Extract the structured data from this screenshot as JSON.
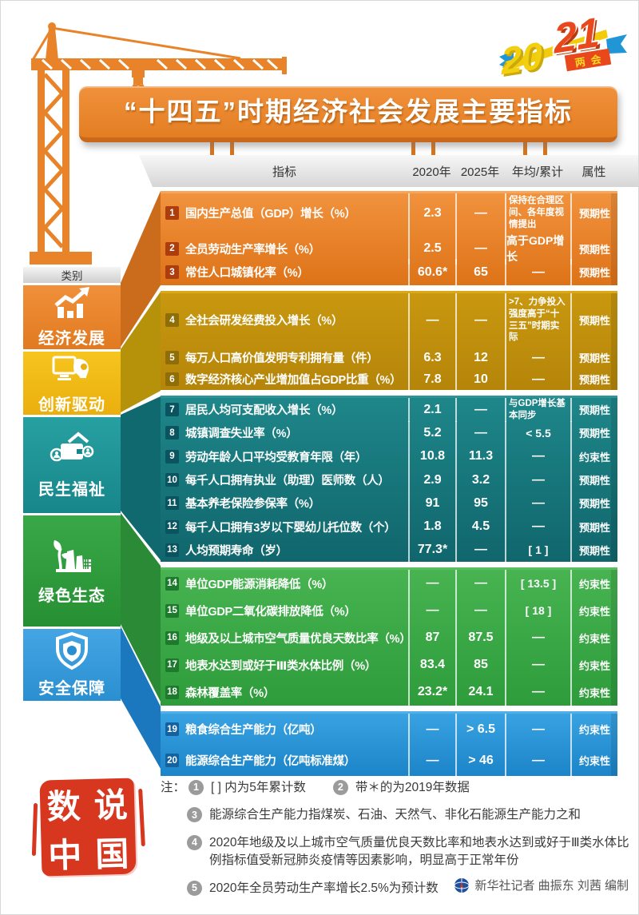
{
  "title": "“十四五”时期经济社会发展主要指标",
  "badge": {
    "year_left": "20",
    "year_right": "21",
    "label": "两会"
  },
  "sidebar": {
    "header": "类别"
  },
  "chart_data": {
    "type": "table",
    "title": "“十四五”时期经济社会发展主要指标",
    "columns": [
      "指标",
      "2020年",
      "2025年",
      "年均/累计",
      "属性"
    ],
    "sections": [
      {
        "name": "economic",
        "label": "经济发展",
        "color": "#E8832A",
        "icon": "growth-chart-icon",
        "rows": [
          {
            "num": "1",
            "indicator": "国内生产总值（GDP）增长（%）",
            "v2020": "2.3",
            "v2025": "—",
            "avg": "保持在合理区间、各年度视情提出",
            "attr": "预期性"
          },
          {
            "num": "2",
            "indicator": "全员劳动生产率增长（%）",
            "v2020": "2.5",
            "v2025": "—",
            "avg": "高于GDP增长",
            "attr": "预期性"
          },
          {
            "num": "3",
            "indicator": "常住人口城镇化率（%）",
            "v2020": "60.6*",
            "v2025": "65",
            "avg": "—",
            "attr": "预期性"
          }
        ]
      },
      {
        "name": "innovation",
        "label": "创新驱动",
        "color": "#EFBC13",
        "icon": "innovation-icon",
        "rows": [
          {
            "num": "4",
            "indicator": "全社会研发经费投入增长（%）",
            "v2020": "—",
            "v2025": "—",
            "avg": ">7、力争投入强度高于“十三五”时期实际",
            "attr": "预期性"
          },
          {
            "num": "5",
            "indicator": "每万人口高价值发明专利拥有量（件）",
            "v2020": "6.3",
            "v2025": "12",
            "avg": "—",
            "attr": "预期性"
          },
          {
            "num": "6",
            "indicator": "数字经济核心产业增加值占GDP比重（%）",
            "v2020": "7.8",
            "v2025": "10",
            "avg": "—",
            "attr": "预期性"
          }
        ]
      },
      {
        "name": "livelihood",
        "label": "民生福祉",
        "color": "#1E8C8E",
        "icon": "livelihood-icon",
        "rows": [
          {
            "num": "7",
            "indicator": "居民人均可支配收入增长（%）",
            "v2020": "2.1",
            "v2025": "—",
            "avg": "与GDP增长基本同步",
            "attr": "预期性"
          },
          {
            "num": "8",
            "indicator": "城镇调查失业率（%）",
            "v2020": "5.2",
            "v2025": "—",
            "avg": "< 5.5",
            "attr": "预期性"
          },
          {
            "num": "9",
            "indicator": "劳动年龄人口平均受教育年限（年）",
            "v2020": "10.8",
            "v2025": "11.3",
            "avg": "—",
            "attr": "约束性"
          },
          {
            "num": "10",
            "indicator": "每千人口拥有执业（助理）医师数（人）",
            "v2020": "2.9",
            "v2025": "3.2",
            "avg": "—",
            "attr": "预期性"
          },
          {
            "num": "11",
            "indicator": "基本养老保险参保率（%）",
            "v2020": "91",
            "v2025": "95",
            "avg": "—",
            "attr": "预期性"
          },
          {
            "num": "12",
            "indicator": "每千人口拥有3岁以下婴幼儿托位数（个）",
            "v2020": "1.8",
            "v2025": "4.5",
            "avg": "—",
            "attr": "预期性"
          },
          {
            "num": "13",
            "indicator": "人均预期寿命（岁）",
            "v2020": "77.3*",
            "v2025": "—",
            "avg": "[ 1 ]",
            "attr": "预期性"
          }
        ]
      },
      {
        "name": "eco",
        "label": "绿色生态",
        "color": "#33A23F",
        "icon": "eco-icon",
        "rows": [
          {
            "num": "14",
            "indicator": "单位GDP能源消耗降低（%）",
            "v2020": "—",
            "v2025": "—",
            "avg": "[ 13.5 ]",
            "attr": "约束性"
          },
          {
            "num": "15",
            "indicator": "单位GDP二氧化碳排放降低（%）",
            "v2020": "—",
            "v2025": "—",
            "avg": "[ 18 ]",
            "attr": "约束性"
          },
          {
            "num": "16",
            "indicator": "地级及以上城市空气质量优良天数比率（%）",
            "v2020": "87",
            "v2025": "87.5",
            "avg": "—",
            "attr": "约束性"
          },
          {
            "num": "17",
            "indicator": "地表水达到或好于Ⅲ类水体比例（%）",
            "v2020": "83.4",
            "v2025": "85",
            "avg": "—",
            "attr": "约束性"
          },
          {
            "num": "18",
            "indicator": "森林覆盖率（%）",
            "v2020": "23.2*",
            "v2025": "24.1",
            "avg": "—",
            "attr": "约束性"
          }
        ]
      },
      {
        "name": "security",
        "label": "安全保障",
        "color": "#2E96D9",
        "icon": "shield-icon",
        "rows": [
          {
            "num": "19",
            "indicator": "粮食综合生产能力（亿吨）",
            "v2020": "—",
            "v2025": "> 6.5",
            "avg": "—",
            "attr": "约束性"
          },
          {
            "num": "20",
            "indicator": "能源综合生产能力（亿吨标准煤）",
            "v2020": "—",
            "v2025": "> 46",
            "avg": "—",
            "attr": "约束性"
          }
        ]
      }
    ]
  },
  "notes": {
    "prefix": "注：",
    "items": [
      {
        "num": "1",
        "text": "[ ] 内为5年累计数"
      },
      {
        "num": "2",
        "text": "带＊的为2019年数据"
      },
      {
        "num": "3",
        "text": "能源综合生产能力指煤炭、石油、天然气、非化石能源生产能力之和"
      },
      {
        "num": "4",
        "text": "2020年地级及以上城市空气质量优良天数比率和地表水达到或好于Ⅲ类水体比例指标值受新冠肺炎疫情等因素影响，明显高于正常年份"
      },
      {
        "num": "5",
        "text": "2020年全员劳动生产率增长2.5%为预计数"
      }
    ]
  },
  "seal": {
    "chars": [
      "数",
      "说",
      "中",
      "国"
    ]
  },
  "credit": "新华社记者 曲振东 刘茜 编制"
}
